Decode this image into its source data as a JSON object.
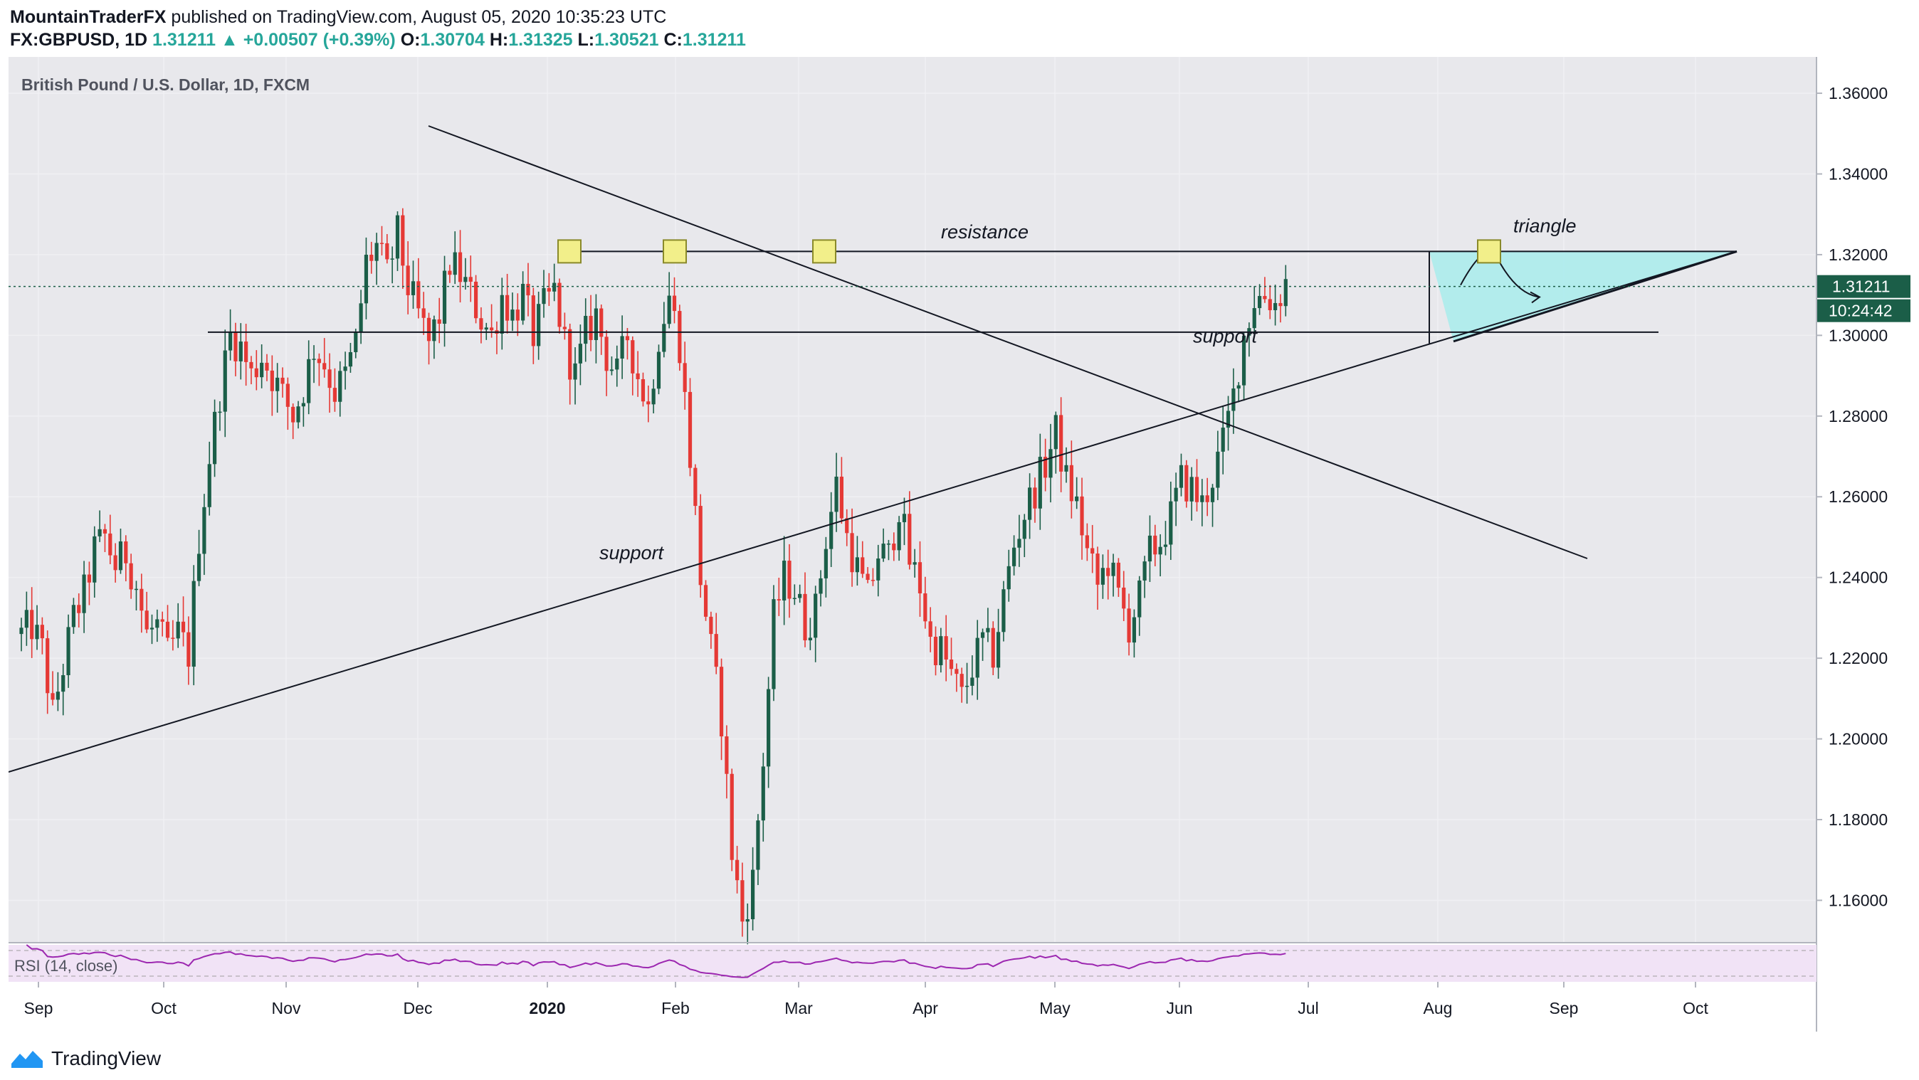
{
  "header": {
    "publisher": "MountainTraderFX",
    "published_text": "published on TradingView.com, August 05, 2020 10:35:23 UTC",
    "symbol": "FX:GBPUSD, 1D",
    "last": "1.31211",
    "change": "▲ +0.00507 (+0.39%)",
    "o_label": "O:",
    "o": "1.30704",
    "h_label": "H:",
    "h": "1.31325",
    "l_label": "L:",
    "l": "1.30521",
    "c_label": "C:",
    "c": "1.31211"
  },
  "footer": {
    "brand": "TradingView"
  },
  "colors": {
    "up": "#1b5e48",
    "down": "#e53935",
    "background": "#e8e8ec",
    "triangle": "#a8ecec",
    "rsi": "#9c27b0"
  },
  "chart_data": {
    "type": "candlestick",
    "title": "British Pound / U.S. Dollar, 1D, FXCM",
    "x_ticks": [
      "Sep",
      "Oct",
      "Nov",
      "Dec",
      "2020",
      "Feb",
      "Mar",
      "Apr",
      "May",
      "Jun",
      "Jul",
      "Aug",
      "Sep",
      "Oct"
    ],
    "y_ticks": [
      "1.36000",
      "1.34000",
      "1.32000",
      "1.30000",
      "1.28000",
      "1.26000",
      "1.24000",
      "1.22000",
      "1.20000",
      "1.18000",
      "1.16000"
    ],
    "ylim": [
      1.1495,
      1.369
    ],
    "current_price_label": "1.31211",
    "countdown_label": "10:24:42",
    "rsi_label": "RSI (14, close)",
    "annotations": [
      "resistance",
      "support",
      "support",
      "triangle"
    ],
    "price_path": [
      [
        0,
        1.226
      ],
      [
        2,
        1.228
      ],
      [
        4,
        1.222
      ],
      [
        6,
        1.206
      ],
      [
        8,
        1.218
      ],
      [
        10,
        1.23
      ],
      [
        12,
        1.236
      ],
      [
        14,
        1.247
      ],
      [
        16,
        1.25
      ],
      [
        18,
        1.243
      ],
      [
        20,
        1.246
      ],
      [
        22,
        1.238
      ],
      [
        24,
        1.226
      ],
      [
        26,
        1.228
      ],
      [
        28,
        1.221
      ],
      [
        30,
        1.226
      ],
      [
        32,
        1.221
      ],
      [
        34,
        1.25
      ],
      [
        36,
        1.27
      ],
      [
        38,
        1.286
      ],
      [
        40,
        1.3
      ],
      [
        42,
        1.297
      ],
      [
        44,
        1.29
      ],
      [
        46,
        1.295
      ],
      [
        48,
        1.29
      ],
      [
        50,
        1.285
      ],
      [
        52,
        1.28
      ],
      [
        54,
        1.287
      ],
      [
        56,
        1.297
      ],
      [
        58,
        1.293
      ],
      [
        60,
        1.286
      ],
      [
        62,
        1.29
      ],
      [
        64,
        1.298
      ],
      [
        66,
        1.318
      ],
      [
        68,
        1.322
      ],
      [
        70,
        1.315
      ],
      [
        72,
        1.325
      ],
      [
        74,
        1.312
      ],
      [
        76,
        1.305
      ],
      [
        78,
        1.298
      ],
      [
        80,
        1.305
      ],
      [
        82,
        1.318
      ],
      [
        84,
        1.315
      ],
      [
        86,
        1.31
      ],
      [
        88,
        1.304
      ],
      [
        90,
        1.3
      ],
      [
        92,
        1.31
      ],
      [
        94,
        1.305
      ],
      [
        96,
        1.31
      ],
      [
        98,
        1.3
      ],
      [
        100,
        1.307
      ],
      [
        102,
        1.311
      ],
      [
        104,
        1.298
      ],
      [
        106,
        1.29
      ],
      [
        108,
        1.3
      ],
      [
        110,
        1.305
      ],
      [
        112,
        1.295
      ],
      [
        114,
        1.29
      ],
      [
        116,
        1.3
      ],
      [
        118,
        1.29
      ],
      [
        120,
        1.282
      ],
      [
        122,
        1.3
      ],
      [
        124,
        1.31
      ],
      [
        126,
        1.298
      ],
      [
        128,
        1.27
      ],
      [
        130,
        1.24
      ],
      [
        132,
        1.222
      ],
      [
        134,
        1.205
      ],
      [
        136,
        1.172
      ],
      [
        138,
        1.155
      ],
      [
        140,
        1.165
      ],
      [
        142,
        1.195
      ],
      [
        144,
        1.23
      ],
      [
        146,
        1.24
      ],
      [
        148,
        1.237
      ],
      [
        150,
        1.228
      ],
      [
        152,
        1.232
      ],
      [
        154,
        1.25
      ],
      [
        156,
        1.263
      ],
      [
        158,
        1.25
      ],
      [
        160,
        1.242
      ],
      [
        162,
        1.235
      ],
      [
        164,
        1.246
      ],
      [
        166,
        1.245
      ],
      [
        168,
        1.258
      ],
      [
        170,
        1.244
      ],
      [
        172,
        1.238
      ],
      [
        174,
        1.224
      ],
      [
        176,
        1.222
      ],
      [
        178,
        1.216
      ],
      [
        180,
        1.21
      ],
      [
        182,
        1.218
      ],
      [
        184,
        1.224
      ],
      [
        186,
        1.221
      ],
      [
        188,
        1.235
      ],
      [
        190,
        1.248
      ],
      [
        192,
        1.256
      ],
      [
        194,
        1.262
      ],
      [
        196,
        1.268
      ],
      [
        198,
        1.276
      ],
      [
        200,
        1.264
      ],
      [
        202,
        1.258
      ],
      [
        204,
        1.246
      ],
      [
        206,
        1.238
      ],
      [
        208,
        1.244
      ],
      [
        210,
        1.235
      ],
      [
        212,
        1.228
      ],
      [
        214,
        1.235
      ],
      [
        216,
        1.246
      ],
      [
        218,
        1.249
      ],
      [
        220,
        1.255
      ],
      [
        222,
        1.264
      ],
      [
        224,
        1.262
      ],
      [
        226,
        1.258
      ],
      [
        228,
        1.265
      ],
      [
        230,
        1.273
      ],
      [
        232,
        1.285
      ],
      [
        234,
        1.3
      ],
      [
        236,
        1.309
      ],
      [
        238,
        1.31
      ],
      [
        240,
        1.308
      ],
      [
        242,
        1.313
      ]
    ]
  }
}
